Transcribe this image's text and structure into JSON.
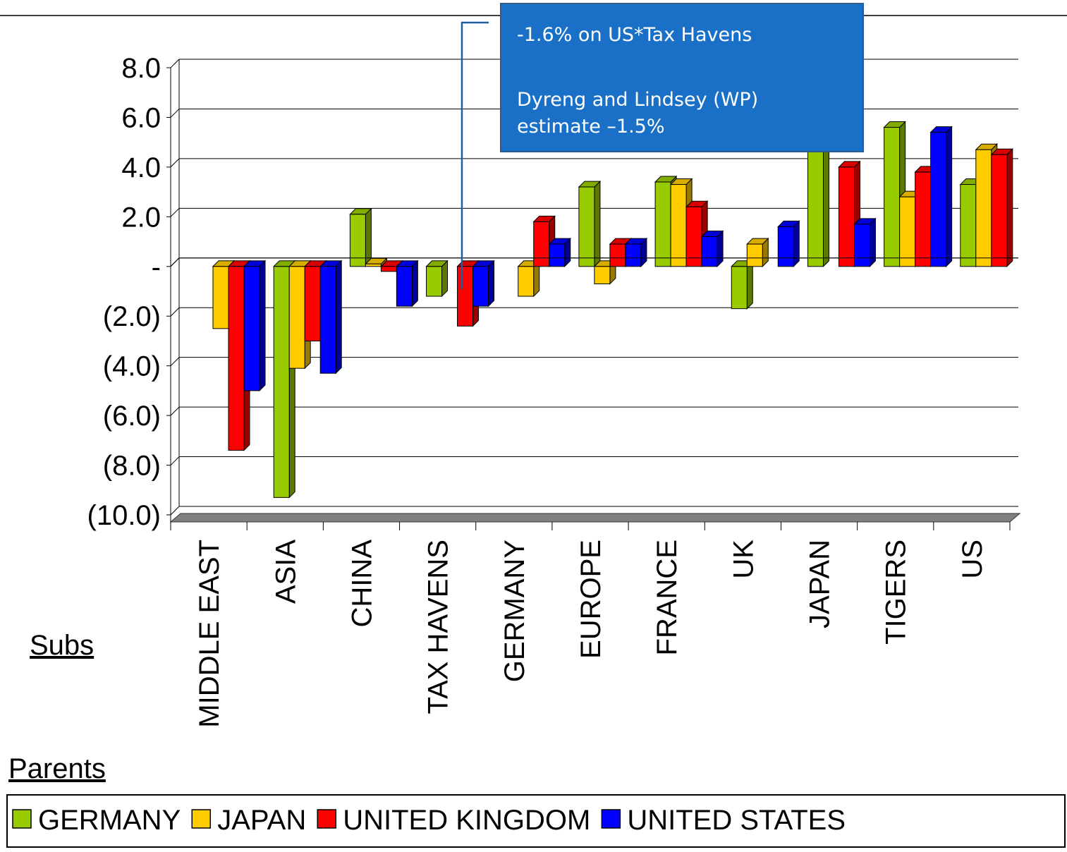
{
  "chart_data": {
    "type": "bar3d",
    "categories": [
      "MIDDLE EAST",
      "ASIA",
      "CHINA",
      "TAX HAVENS",
      "GERMANY",
      "EUROPE",
      "FRANCE",
      "UK",
      "JAPAN",
      "TIGERS",
      "US"
    ],
    "series": [
      {
        "name": "GERMANY",
        "color": "#99cc00",
        "values": [
          null,
          -9.3,
          2.1,
          -1.2,
          null,
          3.2,
          3.4,
          -1.7,
          5.5,
          5.6,
          3.3
        ]
      },
      {
        "name": "JAPAN",
        "color": "#ffcc00",
        "values": [
          -2.5,
          -4.1,
          0.1,
          null,
          -1.2,
          -0.7,
          3.3,
          0.9,
          null,
          2.8,
          4.7
        ]
      },
      {
        "name": "UNITED KINGDOM",
        "color": "#ff0000",
        "values": [
          -7.4,
          -3.0,
          -0.2,
          -2.4,
          1.8,
          0.9,
          2.4,
          null,
          4.0,
          3.8,
          4.5
        ]
      },
      {
        "name": "UNITED STATES",
        "color": "#0000ff",
        "values": [
          -5.0,
          -4.3,
          -1.6,
          -1.6,
          0.9,
          0.9,
          1.2,
          1.6,
          1.7,
          5.4,
          null
        ]
      }
    ],
    "ylim": [
      -10,
      8
    ],
    "yticks": [
      {
        "value": 8,
        "label": "8.0"
      },
      {
        "value": 6,
        "label": "6.0"
      },
      {
        "value": 4,
        "label": "4.0"
      },
      {
        "value": 2,
        "label": "2.0"
      },
      {
        "value": 0,
        "label": "-"
      },
      {
        "value": -2,
        "label": "(2.0)"
      },
      {
        "value": -4,
        "label": "(4.0)"
      },
      {
        "value": -6,
        "label": "(6.0)"
      },
      {
        "value": -8,
        "label": "(8.0)"
      },
      {
        "value": -10,
        "label": "(10.0)"
      }
    ],
    "grid": true,
    "legend": "bottom",
    "axis_label_subs": "Subs",
    "axis_label_parents": "Parents",
    "annotation": {
      "line1": "-1.6% on US*Tax Havens",
      "line2": "Dyreng and Lindsey (WP)",
      "line3": "estimate –1.5%"
    }
  }
}
